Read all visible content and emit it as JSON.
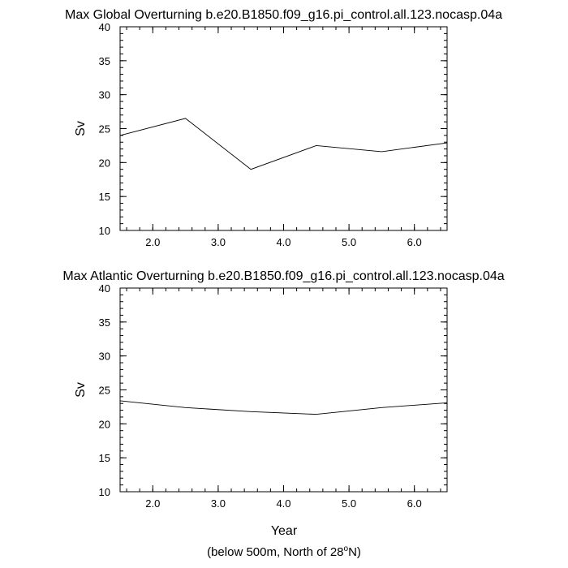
{
  "figure": {
    "xlabel": "Year",
    "footnote_main": "(below 500m, North of 28",
    "footnote_sup": "o",
    "footnote_end": "N)"
  },
  "chart_data": [
    {
      "type": "line",
      "title": "Max Global Overturning b.e20.B1850.f09_g16.pi_control.all.123.nocasp.04a",
      "ylabel": "Sv",
      "xlabel": "",
      "xlim": [
        1.5,
        6.5
      ],
      "ylim": [
        10,
        40
      ],
      "xticks": [
        2.0,
        3.0,
        4.0,
        5.0,
        6.0
      ],
      "xtick_labels": [
        "2.0",
        "3.0",
        "4.0",
        "5.0",
        "6.0"
      ],
      "yticks": [
        10,
        15,
        20,
        25,
        30,
        35,
        40
      ],
      "ytick_labels": [
        "10",
        "15",
        "20",
        "25",
        "30",
        "35",
        "40"
      ],
      "x": [
        1.5,
        2.5,
        3.5,
        4.5,
        5.5,
        6.5
      ],
      "y": [
        24.0,
        26.5,
        19.0,
        22.5,
        21.6,
        22.9
      ],
      "grid": false,
      "line_color": "#000000"
    },
    {
      "type": "line",
      "title": "Max Atlantic Overturning b.e20.B1850.f09_g16.pi_control.all.123.nocasp.04a",
      "ylabel": "Sv",
      "xlabel": "Year",
      "xlim": [
        1.5,
        6.5
      ],
      "ylim": [
        10,
        40
      ],
      "xticks": [
        2.0,
        3.0,
        4.0,
        5.0,
        6.0
      ],
      "xtick_labels": [
        "2.0",
        "3.0",
        "4.0",
        "5.0",
        "6.0"
      ],
      "yticks": [
        10,
        15,
        20,
        25,
        30,
        35,
        40
      ],
      "ytick_labels": [
        "10",
        "15",
        "20",
        "25",
        "30",
        "35",
        "40"
      ],
      "x": [
        1.5,
        2.5,
        3.5,
        4.5,
        5.5,
        6.5
      ],
      "y": [
        23.4,
        22.4,
        21.8,
        21.4,
        22.4,
        23.1
      ],
      "grid": false,
      "line_color": "#000000"
    }
  ]
}
